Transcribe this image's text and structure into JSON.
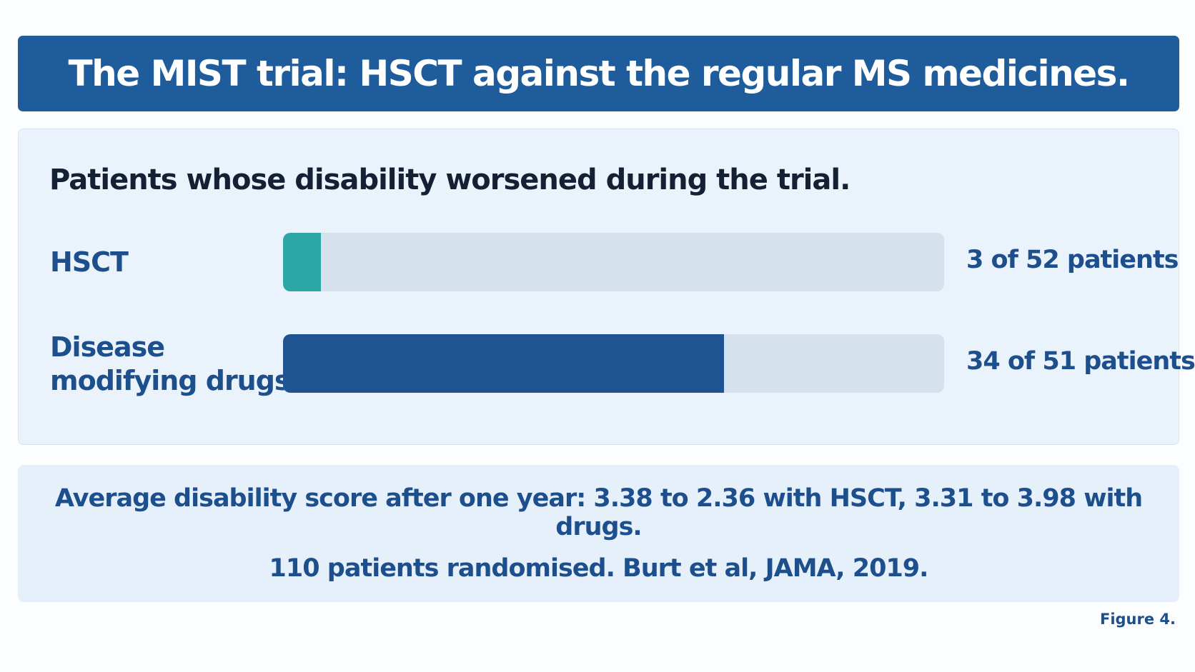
{
  "title": "The MIST trial: HSCT against the regular MS medicines.",
  "chart_data": {
    "type": "bar",
    "orientation": "horizontal",
    "title": "Patients whose disability worsened during the trial.",
    "categories": [
      "HSCT",
      "Disease modifying drugs"
    ],
    "category_lines": [
      [
        "HSCT"
      ],
      [
        "Disease",
        "modifying drugs"
      ]
    ],
    "worsened": [
      3,
      34
    ],
    "totals": [
      52,
      51
    ],
    "value_labels": [
      "3 of 52 patients",
      "34 of 51 patients"
    ],
    "colors": [
      "#2ca6a6",
      "#1f5391"
    ],
    "track_color": "#d5e1ec"
  },
  "note": {
    "line1": "Average disability score after one year: 3.38 to 2.36 with HSCT, 3.31 to 3.98 with drugs.",
    "line2": "110 patients randomised. Burt et al, JAMA, 2019."
  },
  "caption": "Figure 4."
}
